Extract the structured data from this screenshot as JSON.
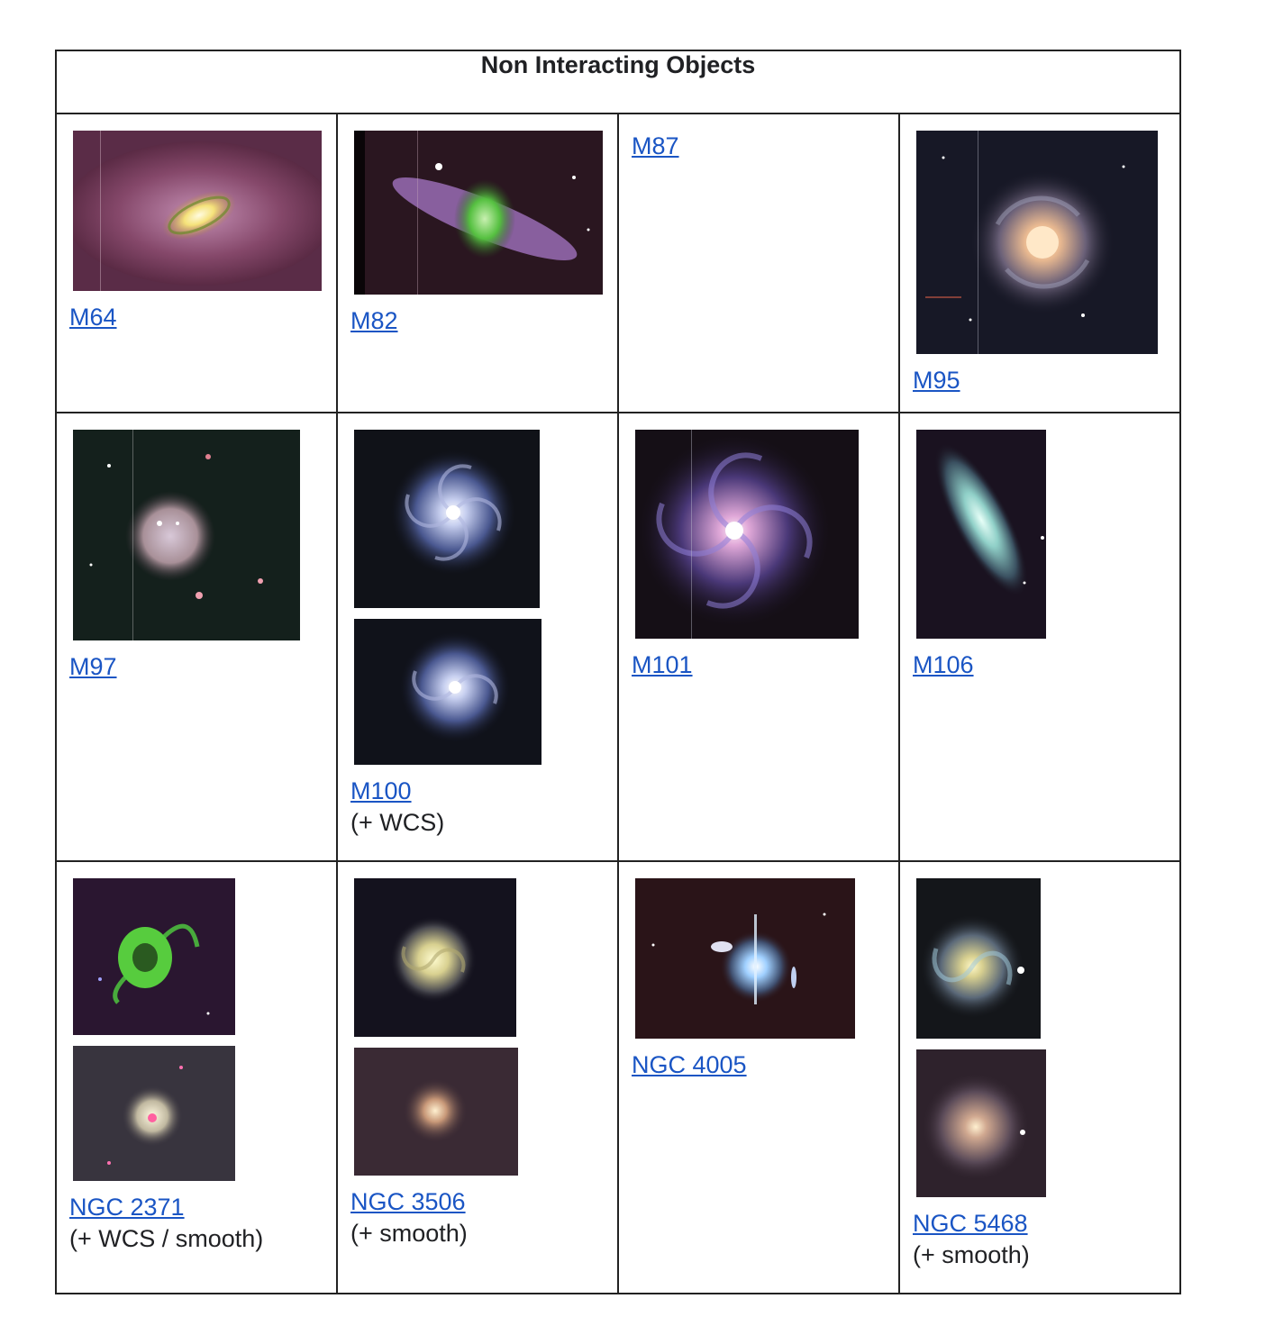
{
  "table": {
    "title": "Non Interacting Objects",
    "cells": [
      {
        "name": "M64",
        "note": ""
      },
      {
        "name": "M82",
        "note": ""
      },
      {
        "name": "M87",
        "note": ""
      },
      {
        "name": "M95",
        "note": ""
      },
      {
        "name": "M97",
        "note": ""
      },
      {
        "name": "M100",
        "note": "(+ WCS)"
      },
      {
        "name": "M101",
        "note": ""
      },
      {
        "name": "M106",
        "note": ""
      },
      {
        "name": "NGC 2371",
        "note": "(+ WCS / smooth)"
      },
      {
        "name": "NGC 3506",
        "note": "(+ smooth)"
      },
      {
        "name": "NGC 4005",
        "note": ""
      },
      {
        "name": "NGC 5468",
        "note": "(+ smooth)"
      }
    ]
  },
  "colors": {
    "link": "#1a55c4",
    "border": "#222222"
  }
}
